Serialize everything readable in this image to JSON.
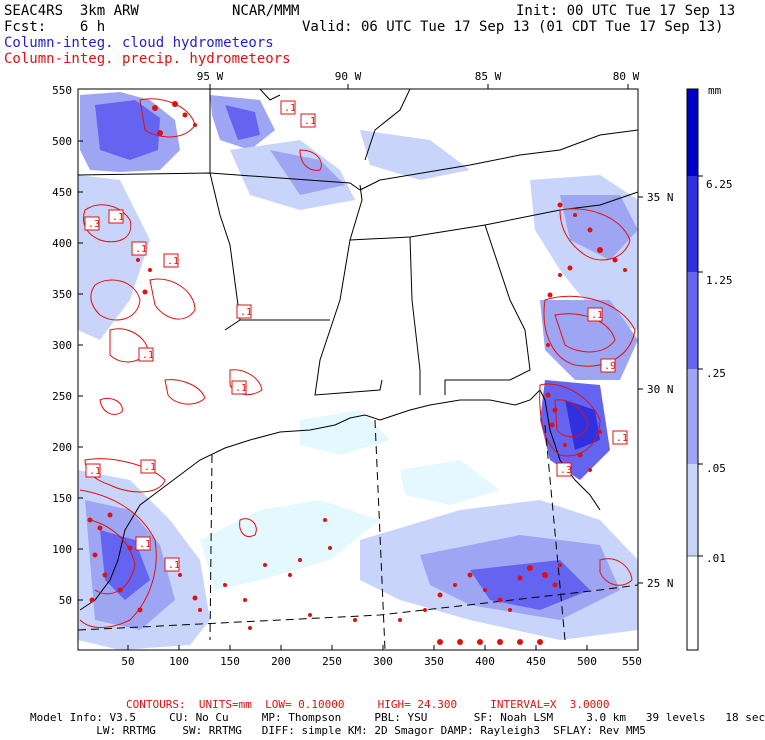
{
  "header": {
    "line1_left": "SEAC4RS  3km ARW",
    "line1_center": "NCAR/MMM",
    "line1_right": "Init: 00 UTC Tue 17 Sep 13",
    "line2_left": "Fcst:    6 h",
    "line2_right": "Valid: 06 UTC Tue 17 Sep 13 (01 CDT Tue 17 Sep 13)",
    "line3": "Column-integ. cloud hydrometeors",
    "line4": "Column-integ. precip. hydrometeors"
  },
  "axes": {
    "x_ticks": [
      "50",
      "100",
      "150",
      "200",
      "250",
      "300",
      "350",
      "400",
      "450",
      "500",
      "550"
    ],
    "y_ticks": [
      "50",
      "100",
      "150",
      "200",
      "250",
      "300",
      "350",
      "400",
      "450",
      "500",
      "550"
    ],
    "lon_labels": [
      "95 W",
      "90 W",
      "85 W",
      "80 W"
    ],
    "lat_labels": [
      "35 N",
      "30 N",
      "25 N"
    ]
  },
  "colorbar": {
    "unit": "mm",
    "labels": [
      "6.25",
      "1.25",
      ".25",
      ".05",
      ".01"
    ],
    "colors": [
      "#0000c8",
      "#3030e0",
      "#6464f0",
      "#9ea6f4",
      "#c8d4fa",
      "#e4f8ff",
      "#ffffff"
    ]
  },
  "contour_labels": [
    ".1",
    ".1",
    ".1",
    ".3",
    ".1",
    ".1",
    ".1",
    ".1",
    ".1",
    ".1",
    ".1",
    ".1",
    ".1",
    ".1",
    ".9",
    ".1",
    ".3"
  ],
  "footer": {
    "contours": "CONTOURS:  UNITS=mm  LOW= 0.10000     HIGH= 24.300     INTERVAL=X  3.0000",
    "model1": "Model Info: V3.5     CU: No Cu     MP: Thompson     PBL: YSU       SF: Noah LSM     3.0 km   39 levels   18 sec",
    "model2": "          LW: RRTMG    SW: RRTMG   DIFF: simple KM: 2D Smagor DAMP: Rayleigh3  SFLAY: Rev MM5"
  },
  "colors": {
    "cloud": "#1f1fd0",
    "precip": "#e01010",
    "boundary": "#000000"
  }
}
